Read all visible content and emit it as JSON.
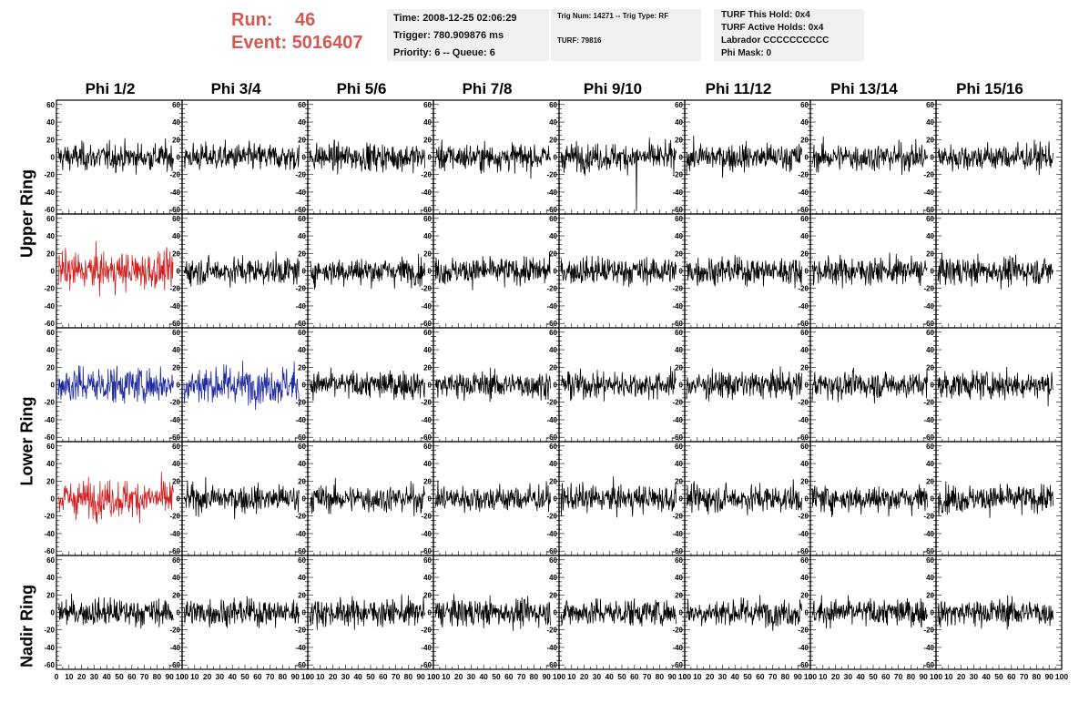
{
  "header": {
    "run_label": "Run:",
    "run_value": "46",
    "event_label": "Event:",
    "event_value": "5016407",
    "time": "Time: 2008-12-25 02:06:29",
    "trigger": "Trigger: 780.909876 ms",
    "priority": "Priority: 6 -- Queue: 6",
    "trig_num": "Trig Num: 14271 -- Trig Type: RF",
    "turf": "TURF: 79816",
    "turf_hold": "TURF This Hold: 0x4",
    "turf_active": "TURF Active Holds: 0x4",
    "labrador": "Labrador CCCCCCCCCC",
    "phi_mask": "Phi Mask: 0"
  },
  "phi_labels": [
    "Phi 1/2",
    "Phi 3/4",
    "Phi 5/6",
    "Phi 7/8",
    "Phi 9/10",
    "Phi 11/12",
    "Phi 13/14",
    "Phi 15/16"
  ],
  "ring_labels": [
    "Upper Ring",
    "Lower Ring",
    "Nadir Ring"
  ],
  "colors": {
    "black": "#000000",
    "red": "#d02020",
    "blue": "#1f2aa0",
    "run_text": "#d05a52",
    "box_bg": "#f0f0f0"
  },
  "chart_data": {
    "type": "line",
    "rows": 5,
    "cols": 8,
    "ylim": [
      -65,
      65
    ],
    "xlim": [
      0,
      100
    ],
    "yticks": [
      "60",
      "40",
      "20",
      "0",
      "-20",
      "-40",
      "-60"
    ],
    "xticks": [
      "0",
      "10",
      "20",
      "30",
      "40",
      "50",
      "60",
      "70",
      "80",
      "90",
      "100"
    ],
    "grid": false,
    "note_amplitude": "random-like waveform noise, typical peak about ±25",
    "highlighted_panels": [
      {
        "row": 1,
        "col": 0,
        "color": "red"
      },
      {
        "row": 2,
        "col": 0,
        "color": "blue"
      },
      {
        "row": 2,
        "col": 1,
        "color": "blue"
      },
      {
        "row": 3,
        "col": 0,
        "color": "red"
      }
    ]
  }
}
